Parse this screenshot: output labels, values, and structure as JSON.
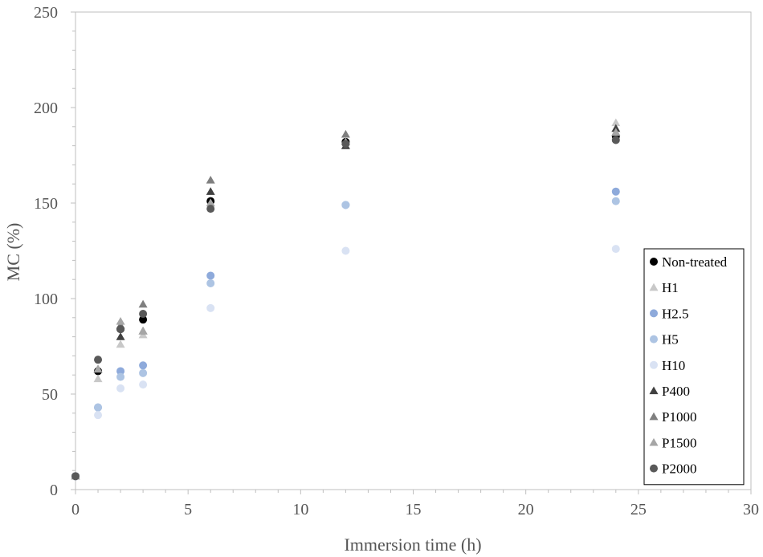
{
  "chart_data": {
    "type": "scatter",
    "title": "",
    "xlabel": "Immersion time (h)",
    "ylabel": "MC (%)",
    "xlim": [
      0,
      30
    ],
    "ylim": [
      0,
      250
    ],
    "xticks": [
      "0",
      "5",
      "10",
      "15",
      "20",
      "25",
      "30"
    ],
    "yticks": [
      "0",
      "50",
      "100",
      "150",
      "200",
      "250"
    ],
    "grid": false,
    "legend_position": "right",
    "series": [
      {
        "name": "Non-treated",
        "marker": "circle",
        "color": "#000000",
        "x": [
          0,
          1,
          2,
          3,
          6,
          12,
          24
        ],
        "y": [
          7,
          62,
          84,
          89,
          151,
          182,
          185
        ]
      },
      {
        "name": "H1",
        "marker": "triangle",
        "color": "#c8c8c8",
        "x": [
          0,
          1,
          2,
          3,
          6,
          12,
          24
        ],
        "y": [
          7,
          58,
          76,
          81,
          150,
          180,
          192
        ]
      },
      {
        "name": "H2.5",
        "marker": "circle",
        "color": "#8eaadb",
        "x": [
          0,
          1,
          2,
          3,
          6,
          12,
          24
        ],
        "y": [
          7,
          43,
          62,
          65,
          112,
          149,
          156
        ]
      },
      {
        "name": "H5",
        "marker": "circle",
        "color": "#adc4e3",
        "x": [
          0,
          1,
          2,
          3,
          6,
          12,
          24
        ],
        "y": [
          7,
          43,
          59,
          61,
          108,
          149,
          151
        ]
      },
      {
        "name": "H10",
        "marker": "circle",
        "color": "#d9e2f3",
        "x": [
          0,
          1,
          2,
          3,
          6,
          12,
          24
        ],
        "y": [
          7,
          39,
          53,
          55,
          95,
          125,
          126
        ]
      },
      {
        "name": "P400",
        "marker": "triangle",
        "color": "#404040",
        "x": [
          0,
          1,
          2,
          3,
          6,
          12,
          24
        ],
        "y": [
          7,
          63,
          80,
          83,
          156,
          180,
          189
        ]
      },
      {
        "name": "P1000",
        "marker": "triangle",
        "color": "#7f7f7f",
        "x": [
          0,
          1,
          2,
          3,
          6,
          12,
          24
        ],
        "y": [
          7,
          63,
          86,
          97,
          162,
          186,
          187
        ]
      },
      {
        "name": "P1500",
        "marker": "triangle",
        "color": "#a6a6a6",
        "x": [
          0,
          1,
          2,
          3,
          6,
          12,
          24
        ],
        "y": [
          7,
          63,
          88,
          83,
          150,
          182,
          187
        ]
      },
      {
        "name": "P2000",
        "marker": "circle",
        "color": "#595959",
        "x": [
          0,
          1,
          2,
          3,
          6,
          12,
          24
        ],
        "y": [
          7,
          68,
          84,
          92,
          147,
          181,
          183
        ]
      }
    ]
  }
}
